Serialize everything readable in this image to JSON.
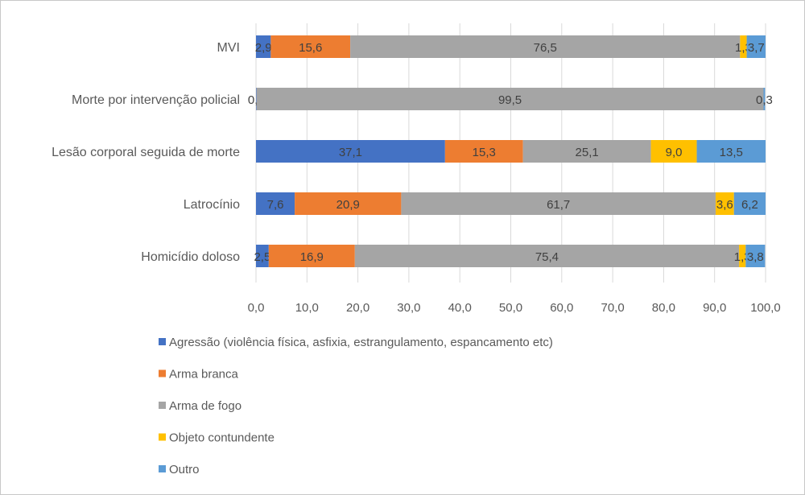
{
  "chart_data": {
    "type": "bar",
    "orientation": "horizontal",
    "stacked": true,
    "categories": [
      "MVI",
      "Morte por intervenção policial",
      "Lesão corporal seguida de morte",
      "Latrocínio",
      "Homicídio doloso"
    ],
    "series": [
      {
        "name": "Agressão (violência física, asfixia, estrangulamento, espancamento etc)",
        "color": "#4472C4",
        "values": [
          2.9,
          0.1,
          37.1,
          7.6,
          2.5
        ]
      },
      {
        "name": "Arma branca",
        "color": "#ED7D31",
        "values": [
          15.6,
          0.0,
          15.3,
          20.9,
          16.9
        ]
      },
      {
        "name": "Arma de fogo",
        "color": "#A5A5A5",
        "values": [
          76.5,
          99.5,
          25.1,
          61.7,
          75.4
        ]
      },
      {
        "name": "Objeto contundente",
        "color": "#FFC000",
        "values": [
          1.3,
          0.0,
          9.0,
          3.6,
          1.3
        ]
      },
      {
        "name": "Outro",
        "color": "#5B9BD5",
        "values": [
          3.7,
          0.3,
          13.5,
          6.2,
          3.8
        ]
      }
    ],
    "xlim": [
      0,
      100
    ],
    "xticks": [
      "0,0",
      "10,0",
      "20,0",
      "30,0",
      "40,0",
      "50,0",
      "60,0",
      "70,0",
      "80,0",
      "90,0",
      "100,0"
    ],
    "grid": true,
    "legend": "bottom"
  }
}
